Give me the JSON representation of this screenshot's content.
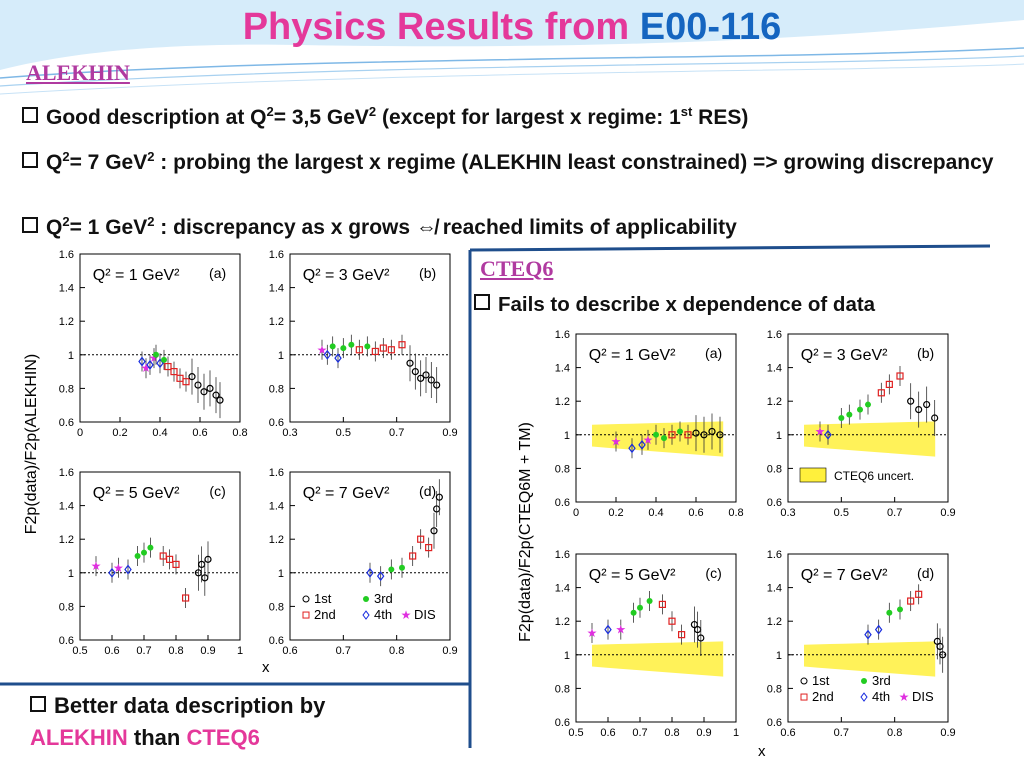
{
  "slide": {
    "title_main": "Physics Results from",
    "title_accent": "E00-116",
    "alekhin_label": "ALEKHIN",
    "bullets": [
      {
        "pre": "Good description at Q",
        "sup1": "2",
        "mid": "= 3,5 GeV",
        "sup2": "2",
        "post": " (except for largest x regime: 1",
        "sup3": "st",
        "end": " RES)"
      },
      {
        "pre": "Q",
        "sup1": "2",
        "mid": "= 7 GeV",
        "sup2": "2",
        "post": " : probing the largest x regime (ALEKHIN least constrained) => growing discrepancy"
      },
      {
        "pre": "Q",
        "sup1": "2",
        "mid": "= 1 GeV",
        "sup2": "2",
        "post": " : discrepancy as x grows ⇎ reached limits of applicability"
      }
    ],
    "cteq_label": "CTEQ6",
    "cteq_bullet": "Fails to describe x dependence of data",
    "footer_line1": "Better data description by",
    "footer_alekhin": "ALEKHIN",
    "footer_than": " than ",
    "footer_cteq": "CTEQ6"
  },
  "chart_data": [
    {
      "type": "scatter",
      "figure": "left",
      "ylabel": "F2p(data)/F2p(ALEKHIN)",
      "xlabel": "x",
      "panels": [
        {
          "label": "Q² = 1 GeV²",
          "tag": "(a)",
          "xlim": [
            0,
            0.8
          ],
          "xticks": [
            "0",
            "0.2",
            "0.4",
            "0.6",
            "0.8"
          ],
          "ylim": [
            0.6,
            1.6
          ],
          "yticks": [
            "0.6",
            "0.8",
            "1",
            "1.2",
            "1.4",
            "1.6"
          ],
          "points": [
            [
              0.31,
              0.96,
              "blue"
            ],
            [
              0.33,
              0.92,
              "magenta"
            ],
            [
              0.35,
              0.94,
              "blue"
            ],
            [
              0.37,
              0.98,
              "magenta"
            ],
            [
              0.38,
              1.0,
              "green"
            ],
            [
              0.4,
              0.95,
              "blue"
            ],
            [
              0.42,
              0.97,
              "green"
            ],
            [
              0.44,
              0.93,
              "red"
            ],
            [
              0.47,
              0.9,
              "red"
            ],
            [
              0.5,
              0.86,
              "red"
            ],
            [
              0.53,
              0.84,
              "red"
            ],
            [
              0.56,
              0.87,
              "black"
            ],
            [
              0.59,
              0.82,
              "black"
            ],
            [
              0.62,
              0.78,
              "black"
            ],
            [
              0.65,
              0.8,
              "black"
            ],
            [
              0.68,
              0.76,
              "black"
            ],
            [
              0.7,
              0.73,
              "black"
            ]
          ]
        },
        {
          "label": "Q² = 3 GeV²",
          "tag": "(b)",
          "xlim": [
            0.3,
            0.9
          ],
          "xticks": [
            "0.3",
            "0.5",
            "0.7",
            "0.9"
          ],
          "ylim": [
            0.6,
            1.6
          ],
          "yticks": [
            "0.6",
            "0.8",
            "1",
            "1.2",
            "1.4",
            "1.6"
          ],
          "points": [
            [
              0.42,
              1.03,
              "magenta"
            ],
            [
              0.44,
              1.0,
              "blue"
            ],
            [
              0.46,
              1.05,
              "green"
            ],
            [
              0.48,
              0.98,
              "blue"
            ],
            [
              0.5,
              1.04,
              "green"
            ],
            [
              0.53,
              1.06,
              "green"
            ],
            [
              0.56,
              1.03,
              "red"
            ],
            [
              0.59,
              1.05,
              "green"
            ],
            [
              0.62,
              1.02,
              "red"
            ],
            [
              0.65,
              1.04,
              "red"
            ],
            [
              0.68,
              1.03,
              "red"
            ],
            [
              0.72,
              1.06,
              "red"
            ],
            [
              0.75,
              0.95,
              "black"
            ],
            [
              0.77,
              0.9,
              "black"
            ],
            [
              0.79,
              0.86,
              "black"
            ],
            [
              0.81,
              0.88,
              "black"
            ],
            [
              0.83,
              0.85,
              "black"
            ],
            [
              0.85,
              0.82,
              "black"
            ]
          ]
        },
        {
          "label": "Q² = 5 GeV²",
          "tag": "(c)",
          "xlim": [
            0.5,
            1.0
          ],
          "xticks": [
            "0.5",
            "0.6",
            "0.7",
            "0.8",
            "0.9",
            "1"
          ],
          "ylim": [
            0.6,
            1.6
          ],
          "yticks": [
            "0.6",
            "0.8",
            "1",
            "1.2",
            "1.4",
            "1.6"
          ],
          "points": [
            [
              0.55,
              1.04,
              "magenta"
            ],
            [
              0.6,
              1.0,
              "blue"
            ],
            [
              0.62,
              1.03,
              "magenta"
            ],
            [
              0.65,
              1.02,
              "blue"
            ],
            [
              0.68,
              1.1,
              "green"
            ],
            [
              0.7,
              1.12,
              "green"
            ],
            [
              0.72,
              1.15,
              "green"
            ],
            [
              0.76,
              1.1,
              "red"
            ],
            [
              0.78,
              1.08,
              "red"
            ],
            [
              0.8,
              1.05,
              "red"
            ],
            [
              0.83,
              0.85,
              "red"
            ],
            [
              0.87,
              1.0,
              "black"
            ],
            [
              0.88,
              1.05,
              "black"
            ],
            [
              0.89,
              0.97,
              "black"
            ],
            [
              0.9,
              1.08,
              "black"
            ]
          ]
        },
        {
          "label": "Q² = 7 GeV²",
          "tag": "(d)",
          "xlim": [
            0.6,
            0.9
          ],
          "xticks": [
            "0.6",
            "0.7",
            "0.8",
            "0.9"
          ],
          "ylim": [
            0.6,
            1.6
          ],
          "yticks": [
            "0.6",
            "0.8",
            "1",
            "1.2",
            "1.4",
            "1.6"
          ],
          "points": [
            [
              0.75,
              1.0,
              "blue"
            ],
            [
              0.77,
              0.98,
              "blue"
            ],
            [
              0.79,
              1.02,
              "green"
            ],
            [
              0.81,
              1.03,
              "green"
            ],
            [
              0.83,
              1.1,
              "red"
            ],
            [
              0.845,
              1.2,
              "red"
            ],
            [
              0.86,
              1.15,
              "red"
            ],
            [
              0.87,
              1.25,
              "black"
            ],
            [
              0.875,
              1.38,
              "black"
            ],
            [
              0.88,
              1.45,
              "black"
            ]
          ]
        }
      ],
      "legend": [
        "1st",
        "2nd",
        "3rd",
        "4th",
        "DIS"
      ]
    },
    {
      "type": "scatter",
      "figure": "right",
      "ylabel": "F2p(data)/F2p(CTEQ6M + TM)",
      "xlabel": "x",
      "band_label": "CTEQ6 uncert.",
      "panels": [
        {
          "label": "Q² = 1 GeV²",
          "tag": "(a)",
          "xlim": [
            0,
            0.8
          ],
          "xticks": [
            "0",
            "0.2",
            "0.4",
            "0.6",
            "0.8"
          ],
          "ylim": [
            0.6,
            1.6
          ],
          "yticks": [
            "0.6",
            "0.8",
            "1",
            "1.2",
            "1.4",
            "1.6"
          ],
          "points": [
            [
              0.2,
              0.96,
              "magenta"
            ],
            [
              0.28,
              0.92,
              "blue"
            ],
            [
              0.33,
              0.94,
              "blue"
            ],
            [
              0.36,
              0.97,
              "magenta"
            ],
            [
              0.4,
              1.0,
              "green"
            ],
            [
              0.44,
              0.98,
              "green"
            ],
            [
              0.48,
              1.0,
              "red"
            ],
            [
              0.52,
              1.02,
              "green"
            ],
            [
              0.56,
              1.0,
              "red"
            ],
            [
              0.6,
              1.01,
              "black"
            ],
            [
              0.64,
              1.0,
              "black"
            ],
            [
              0.68,
              1.02,
              "black"
            ],
            [
              0.72,
              1.0,
              "black"
            ]
          ]
        },
        {
          "label": "Q² = 3 GeV²",
          "tag": "(b)",
          "xlim": [
            0.3,
            0.9
          ],
          "xticks": [
            "0.3",
            "0.5",
            "0.7",
            "0.9"
          ],
          "ylim": [
            0.6,
            1.6
          ],
          "yticks": [
            "0.6",
            "0.8",
            "1",
            "1.2",
            "1.4",
            "1.6"
          ],
          "points": [
            [
              0.42,
              1.02,
              "magenta"
            ],
            [
              0.45,
              1.0,
              "blue"
            ],
            [
              0.5,
              1.1,
              "green"
            ],
            [
              0.53,
              1.12,
              "green"
            ],
            [
              0.57,
              1.15,
              "green"
            ],
            [
              0.6,
              1.18,
              "green"
            ],
            [
              0.65,
              1.25,
              "red"
            ],
            [
              0.68,
              1.3,
              "red"
            ],
            [
              0.72,
              1.35,
              "red"
            ],
            [
              0.76,
              1.2,
              "black"
            ],
            [
              0.79,
              1.15,
              "black"
            ],
            [
              0.82,
              1.18,
              "black"
            ],
            [
              0.85,
              1.1,
              "black"
            ]
          ]
        },
        {
          "label": "Q² = 5 GeV²",
          "tag": "(c)",
          "xlim": [
            0.5,
            1.0
          ],
          "xticks": [
            "0.5",
            "0.6",
            "0.7",
            "0.8",
            "0.9",
            "1"
          ],
          "ylim": [
            0.6,
            1.6
          ],
          "yticks": [
            "0.6",
            "0.8",
            "1",
            "1.2",
            "1.4",
            "1.6"
          ],
          "points": [
            [
              0.55,
              1.13,
              "magenta"
            ],
            [
              0.6,
              1.15,
              "blue"
            ],
            [
              0.64,
              1.15,
              "magenta"
            ],
            [
              0.68,
              1.25,
              "green"
            ],
            [
              0.7,
              1.28,
              "green"
            ],
            [
              0.73,
              1.32,
              "green"
            ],
            [
              0.77,
              1.3,
              "red"
            ],
            [
              0.8,
              1.2,
              "red"
            ],
            [
              0.83,
              1.12,
              "red"
            ],
            [
              0.87,
              1.18,
              "black"
            ],
            [
              0.88,
              1.15,
              "black"
            ],
            [
              0.89,
              1.1,
              "black"
            ]
          ]
        },
        {
          "label": "Q² = 7 GeV²",
          "tag": "(d)",
          "xlim": [
            0.6,
            0.9
          ],
          "xticks": [
            "0.6",
            "0.7",
            "0.8",
            "0.9"
          ],
          "ylim": [
            0.6,
            1.6
          ],
          "yticks": [
            "0.6",
            "0.8",
            "1",
            "1.2",
            "1.4",
            "1.6"
          ],
          "points": [
            [
              0.75,
              1.12,
              "blue"
            ],
            [
              0.77,
              1.15,
              "blue"
            ],
            [
              0.79,
              1.25,
              "green"
            ],
            [
              0.81,
              1.27,
              "green"
            ],
            [
              0.83,
              1.32,
              "red"
            ],
            [
              0.845,
              1.36,
              "red"
            ],
            [
              0.88,
              1.08,
              "black"
            ],
            [
              0.885,
              1.05,
              "black"
            ],
            [
              0.89,
              1.0,
              "black"
            ]
          ]
        }
      ],
      "legend": [
        "1st",
        "2nd",
        "3rd",
        "4th",
        "DIS"
      ]
    }
  ],
  "colors": {
    "title_pink": "#e4389a",
    "title_blue": "#1565c0",
    "section_purple": "#b03aa0",
    "frame_blue": "#1f4e8c",
    "band_yellow": "#fff03c"
  }
}
